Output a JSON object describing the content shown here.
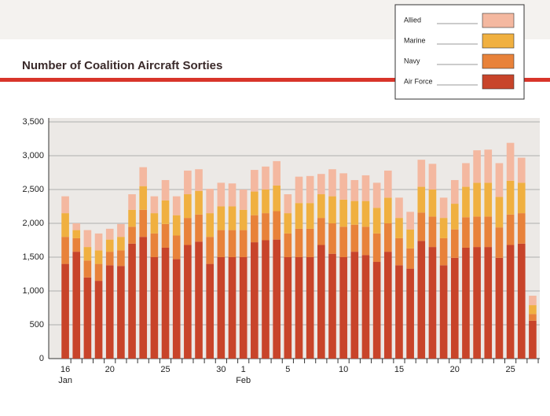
{
  "chart_data": {
    "type": "stacked_bar",
    "title": "Number of Coalition Aircraft Sorties",
    "categories": [
      "16",
      null,
      null,
      null,
      "20",
      null,
      null,
      null,
      null,
      "25",
      null,
      null,
      null,
      null,
      "30",
      null,
      "1",
      null,
      null,
      null,
      "5",
      null,
      null,
      null,
      null,
      "10",
      null,
      null,
      null,
      null,
      "15",
      null,
      null,
      null,
      null,
      "20",
      null,
      null,
      null,
      null,
      "25",
      null,
      null
    ],
    "x_groups": [
      {
        "label": "Jan",
        "start": 0
      },
      {
        "label": "Feb",
        "start": 16
      }
    ],
    "series": [
      {
        "name": "Air Force",
        "color": "#c8442a",
        "values": [
          1400,
          1580,
          1200,
          1150,
          1380,
          1370,
          1700,
          1800,
          1500,
          1640,
          1470,
          1680,
          1730,
          1400,
          1500,
          1500,
          1500,
          1720,
          1750,
          1760,
          1500,
          1500,
          1500,
          1680,
          1550,
          1500,
          1580,
          1530,
          1430,
          1580,
          1380,
          1330,
          1740,
          1650,
          1380,
          1490,
          1640,
          1650,
          1650,
          1490,
          1680,
          1700,
          560
        ]
      },
      {
        "name": "Navy",
        "color": "#e8823a",
        "values": [
          400,
          200,
          250,
          250,
          200,
          230,
          250,
          400,
          350,
          350,
          350,
          400,
          400,
          400,
          400,
          400,
          400,
          400,
          400,
          420,
          350,
          420,
          420,
          400,
          450,
          450,
          400,
          420,
          420,
          420,
          400,
          300,
          420,
          450,
          400,
          420,
          450,
          450,
          450,
          450,
          450,
          450,
          100
        ]
      },
      {
        "name": "Marine",
        "color": "#f0b040",
        "values": [
          350,
          120,
          200,
          200,
          180,
          200,
          250,
          350,
          300,
          350,
          300,
          350,
          350,
          350,
          350,
          350,
          300,
          350,
          350,
          380,
          300,
          380,
          380,
          350,
          400,
          400,
          350,
          380,
          380,
          380,
          300,
          280,
          380,
          400,
          300,
          380,
          450,
          500,
          500,
          450,
          500,
          450,
          130
        ]
      },
      {
        "name": "Allied",
        "color": "#f4b8a0",
        "values": [
          250,
          100,
          250,
          250,
          160,
          190,
          230,
          280,
          250,
          300,
          280,
          350,
          320,
          360,
          350,
          340,
          300,
          320,
          340,
          360,
          280,
          390,
          400,
          300,
          400,
          390,
          310,
          380,
          370,
          400,
          300,
          260,
          400,
          380,
          300,
          350,
          350,
          480,
          490,
          500,
          560,
          370,
          140
        ]
      }
    ],
    "ylim": [
      0,
      3500
    ],
    "yticks": [
      0,
      {
        "value": 500,
        "label": "500"
      },
      {
        "value": 1000,
        "label": "1,000"
      },
      {
        "value": 1500,
        "label": "1,500"
      },
      {
        "value": 2000,
        "label": "2,000"
      },
      {
        "value": 2500,
        "label": "2,500"
      },
      {
        "value": 3000,
        "label": "3,000"
      },
      {
        "value": 3500,
        "label": "3,500"
      }
    ],
    "grid": true
  }
}
